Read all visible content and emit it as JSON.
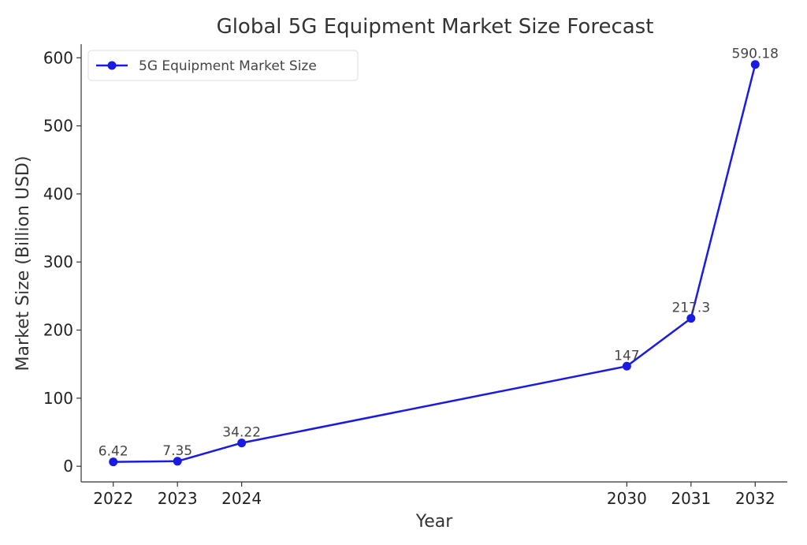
{
  "chart_data": {
    "type": "line",
    "title": "Global 5G Equipment Market Size Forecast",
    "xlabel": "Year",
    "ylabel": "Market Size (Billion USD)",
    "x": [
      2022,
      2023,
      2024,
      2030,
      2031,
      2032
    ],
    "series": [
      {
        "name": "5G Equipment Market Size",
        "values": [
          6.42,
          7.35,
          34.22,
          147,
          217.3,
          590.18
        ],
        "labels": [
          "6.42",
          "7.35",
          "34.22",
          "147",
          "217.3",
          "590.18"
        ],
        "color": "#1a1ae6"
      }
    ],
    "xticks": [
      "2022",
      "2023",
      "2024",
      "2030",
      "2031",
      "2032"
    ],
    "yticks": [
      "0",
      "100",
      "200",
      "300",
      "400",
      "500",
      "600"
    ],
    "ylim": [
      -23,
      620
    ],
    "xlim": [
      2021.5,
      2032.5
    ],
    "grid": false,
    "legend_position": "top-left"
  }
}
